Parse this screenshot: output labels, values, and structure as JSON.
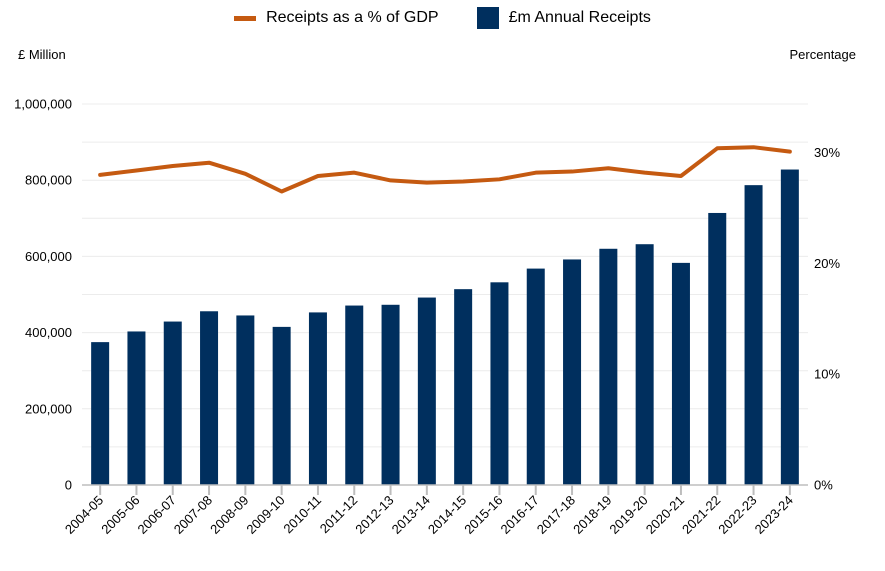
{
  "chart_data": {
    "type": "bar+line",
    "legend": [
      {
        "label": "Receipts as a % of GDP",
        "symbol": "line",
        "color": "#C55A11"
      },
      {
        "label": "£m Annual Receipts",
        "symbol": "bar",
        "color": "#002F5E"
      }
    ],
    "ylabel_left": "£ Million",
    "ylabel_right": "Percentage",
    "categories": [
      "2004-05",
      "2005-06",
      "2006-07",
      "2007-08",
      "2008-09",
      "2009-10",
      "2010-11",
      "2011-12",
      "2012-13",
      "2013-14",
      "2014-15",
      "2015-16",
      "2016-17",
      "2017-18",
      "2018-19",
      "2019-20",
      "2020-21",
      "2021-22",
      "2022-23",
      "2023-24"
    ],
    "series": [
      {
        "name": "£m Annual Receipts",
        "type": "bar",
        "axis": "left",
        "color": "#002F5E",
        "values": [
          375000,
          403000,
          429000,
          456000,
          445000,
          415000,
          453000,
          471000,
          473000,
          492000,
          514000,
          532000,
          568000,
          592000,
          620000,
          632000,
          583000,
          714000,
          787000,
          828000
        ]
      },
      {
        "name": "Receipts as a % of GDP",
        "type": "line",
        "axis": "right",
        "color": "#C55A11",
        "values": [
          28.0,
          28.4,
          28.8,
          29.1,
          28.1,
          26.5,
          27.9,
          28.2,
          27.5,
          27.3,
          27.4,
          27.6,
          28.2,
          28.3,
          28.6,
          28.2,
          27.9,
          30.4,
          30.5,
          30.1
        ]
      }
    ],
    "left_axis": {
      "ylim": [
        0,
        1000000
      ],
      "ticks": [
        0,
        200000,
        400000,
        600000,
        800000,
        1000000
      ],
      "tick_labels": [
        "0",
        "200,000",
        "400,000",
        "600,000",
        "800,000",
        "1,000,000"
      ]
    },
    "right_axis": {
      "ylim": [
        0,
        34.4
      ],
      "ticks": [
        0,
        10,
        20,
        30
      ],
      "tick_labels": [
        "0%",
        "10%",
        "20%",
        "30%"
      ]
    },
    "grid": true
  }
}
